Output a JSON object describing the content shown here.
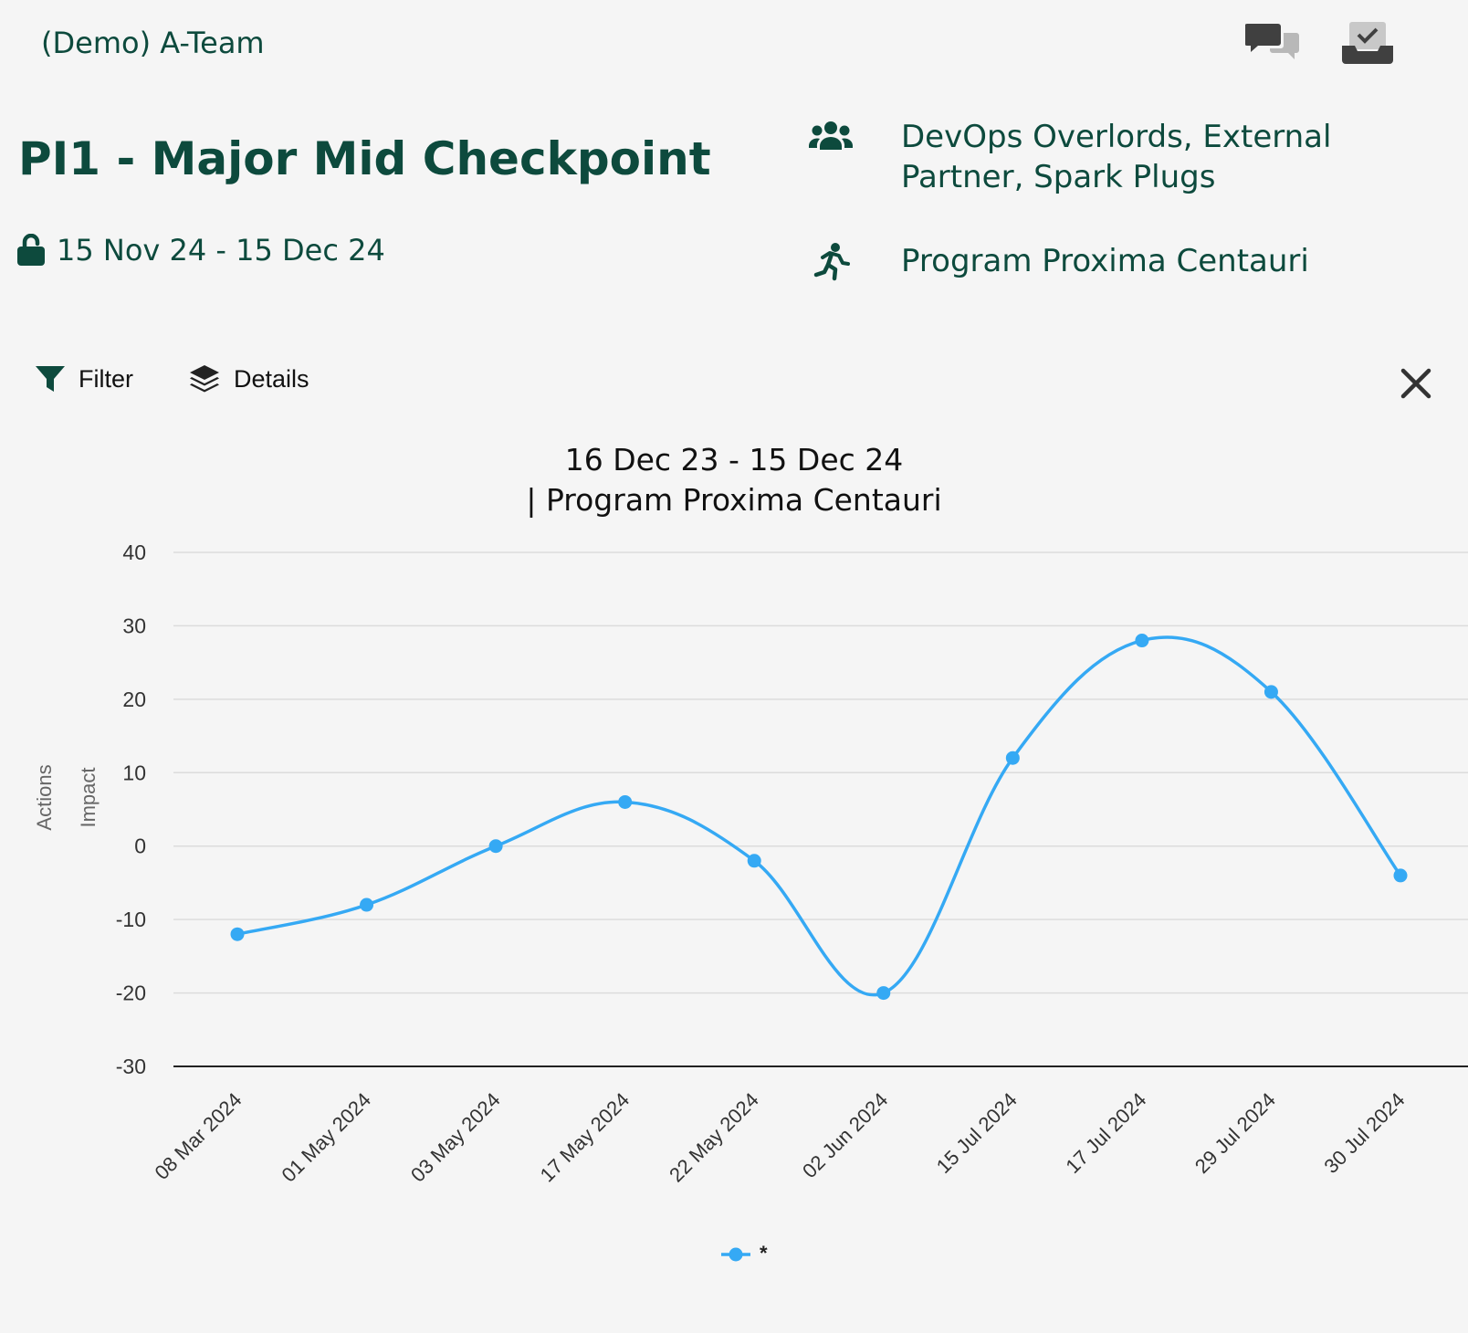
{
  "header": {
    "team_name": "(Demo) A-Team",
    "chat_icon": "chat-bubbles-icon",
    "inbox_icon": "inbox-check-icon"
  },
  "checkpoint": {
    "title": "PI1 - Major Mid Checkpoint",
    "date_range": "15 Nov 24 - 15 Dec 24",
    "lock_icon": "unlocked-icon",
    "teams": "DevOps Overlords, External Partner, Spark Plugs",
    "program": "Program Proxima Centauri"
  },
  "toolbar": {
    "filter_label": "Filter",
    "details_label": "Details"
  },
  "colors": {
    "brand": "#0d4a3d",
    "series": "#35a9f4",
    "background": "#f5f5f5"
  },
  "chart_data": {
    "type": "line",
    "title_line1": "16 Dec 23 - 15 Dec 24",
    "title_line2": "| Program Proxima Centauri",
    "ylabel_outer": "Actions",
    "ylabel_inner": "Impact",
    "ylim": [
      -30,
      40
    ],
    "yticks": [
      40,
      30,
      20,
      10,
      0,
      -10,
      -20,
      -30
    ],
    "categories": [
      "08 Mar 2024",
      "01 May 2024",
      "03 May 2024",
      "17 May 2024",
      "22 May 2024",
      "02 Jun 2024",
      "15 Jul 2024",
      "17 Jul 2024",
      "29 Jul 2024",
      "30 Jul 2024"
    ],
    "series": [
      {
        "name": "*",
        "values": [
          -12,
          -8,
          0,
          6,
          -2,
          -20,
          12,
          28,
          21,
          -4
        ]
      }
    ],
    "grid": true,
    "legend": "bottom-center"
  }
}
